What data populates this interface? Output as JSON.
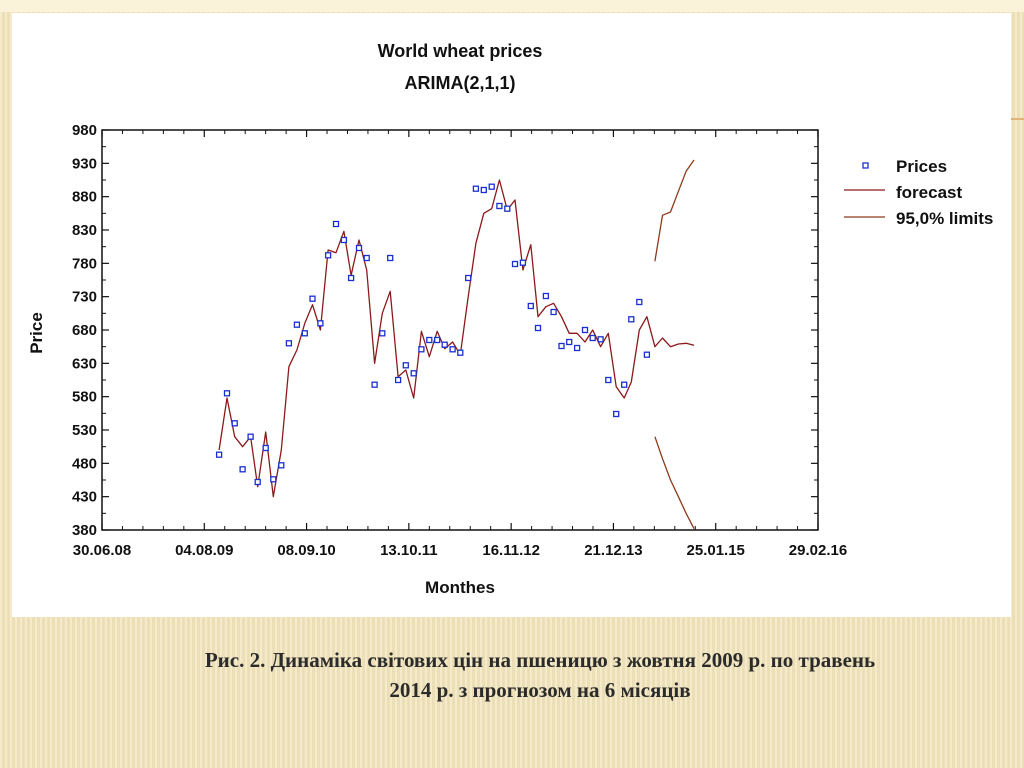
{
  "caption": {
    "line1": "Рис. 2. Динаміка світових цін на пшеницю з жовтня 2009 р. по травень",
    "line2": "2014 р.  з прогнозом на 6 місяців"
  },
  "colors": {
    "points": "#1a2fd0",
    "forecast": "#8b1a1a",
    "limits": "#8b3a1a",
    "background": "#f3e6bd"
  },
  "chart_data": {
    "type": "scatter",
    "title": "World wheat prices",
    "subtitle": "ARIMA(2,1,1)",
    "xlabel": "Monthes",
    "ylabel": "Price",
    "x_is_date": true,
    "xlim": [
      "2008-06-30",
      "2016-02-29"
    ],
    "ylim": [
      380,
      980
    ],
    "y_ticks": [
      380,
      430,
      480,
      530,
      580,
      630,
      680,
      730,
      780,
      830,
      880,
      930,
      980
    ],
    "x_ticks": [
      {
        "date": "2008-06-30",
        "label": "30.06.08"
      },
      {
        "date": "2009-08-04",
        "label": "04.08.09"
      },
      {
        "date": "2010-09-08",
        "label": "08.09.10"
      },
      {
        "date": "2011-10-13",
        "label": "13.10.11"
      },
      {
        "date": "2012-11-16",
        "label": "16.11.12"
      },
      {
        "date": "2013-12-21",
        "label": "21.12.13"
      },
      {
        "date": "2015-01-25",
        "label": "25.01.15"
      },
      {
        "date": "2016-02-29",
        "label": "29.02.16"
      }
    ],
    "legend_position": "right",
    "legend": [
      "Prices",
      "forecast",
      "95,0% limits"
    ],
    "series": [
      {
        "name": "Prices",
        "kind": "points",
        "x": [
          "2009-10-01",
          "2009-11-01",
          "2009-12-01",
          "2010-01-01",
          "2010-02-01",
          "2010-03-01",
          "2010-04-01",
          "2010-05-01",
          "2010-06-01",
          "2010-07-01",
          "2010-08-01",
          "2010-09-01",
          "2010-10-01",
          "2010-11-01",
          "2010-12-01",
          "2011-01-01",
          "2011-02-01",
          "2011-03-01",
          "2011-04-01",
          "2011-05-01",
          "2011-06-01",
          "2011-07-01",
          "2011-08-01",
          "2011-09-01",
          "2011-10-01",
          "2011-11-01",
          "2011-12-01",
          "2012-01-01",
          "2012-02-01",
          "2012-03-01",
          "2012-04-01",
          "2012-05-01",
          "2012-06-01",
          "2012-07-01",
          "2012-08-01",
          "2012-09-01",
          "2012-10-01",
          "2012-11-01",
          "2012-12-01",
          "2013-01-01",
          "2013-02-01",
          "2013-03-01",
          "2013-04-01",
          "2013-05-01",
          "2013-06-01",
          "2013-07-01",
          "2013-08-01",
          "2013-09-01",
          "2013-10-01",
          "2013-11-01",
          "2013-12-01",
          "2014-01-01",
          "2014-02-01",
          "2014-03-01",
          "2014-04-01",
          "2014-05-01"
        ],
        "y": [
          493,
          585,
          540,
          471,
          520,
          452,
          503,
          456,
          477,
          660,
          688,
          675,
          727,
          690,
          792,
          839,
          815,
          758,
          803,
          788,
          598,
          675,
          788,
          605,
          627,
          615,
          651,
          665,
          665,
          658,
          651,
          646,
          758,
          892,
          890,
          895,
          866,
          862,
          779,
          781,
          716,
          683,
          731,
          707,
          656,
          662,
          653,
          680,
          668,
          666,
          605,
          554,
          598,
          696,
          722,
          643
        ]
      },
      {
        "name": "forecast",
        "kind": "line",
        "x": [
          "2009-10-01",
          "2009-11-01",
          "2009-12-01",
          "2010-01-01",
          "2010-02-01",
          "2010-03-01",
          "2010-04-01",
          "2010-05-01",
          "2010-06-01",
          "2010-07-01",
          "2010-08-01",
          "2010-09-01",
          "2010-10-01",
          "2010-11-01",
          "2010-12-01",
          "2011-01-01",
          "2011-02-01",
          "2011-03-01",
          "2011-04-01",
          "2011-05-01",
          "2011-06-01",
          "2011-07-01",
          "2011-08-01",
          "2011-09-01",
          "2011-10-01",
          "2011-11-01",
          "2011-12-01",
          "2012-01-01",
          "2012-02-01",
          "2012-03-01",
          "2012-04-01",
          "2012-05-01",
          "2012-06-01",
          "2012-07-01",
          "2012-08-01",
          "2012-09-01",
          "2012-10-01",
          "2012-11-01",
          "2012-12-01",
          "2013-01-01",
          "2013-02-01",
          "2013-03-01",
          "2013-04-01",
          "2013-05-01",
          "2013-06-01",
          "2013-07-01",
          "2013-08-01",
          "2013-09-01",
          "2013-10-01",
          "2013-11-01",
          "2013-12-01",
          "2014-01-01",
          "2014-02-01",
          "2014-03-01",
          "2014-04-01",
          "2014-05-01",
          "2014-06-01",
          "2014-07-01",
          "2014-08-01",
          "2014-09-01",
          "2014-10-01",
          "2014-11-01"
        ],
        "y": [
          500,
          578,
          520,
          505,
          520,
          445,
          527,
          430,
          500,
          625,
          650,
          690,
          718,
          680,
          800,
          796,
          828,
          762,
          815,
          770,
          630,
          705,
          738,
          610,
          620,
          578,
          678,
          640,
          678,
          652,
          662,
          643,
          730,
          810,
          855,
          862,
          905,
          860,
          875,
          770,
          808,
          700,
          715,
          720,
          700,
          675,
          675,
          662,
          680,
          655,
          675,
          595,
          578,
          602,
          680,
          700,
          655,
          668,
          655,
          659,
          660,
          657
        ]
      },
      {
        "name": "95,0% limits",
        "kind": "line",
        "x": [
          "2014-06-01",
          "2014-07-01",
          "2014-08-01",
          "2014-09-01",
          "2014-10-01",
          "2014-11-01"
        ],
        "y": [
          783,
          852,
          857,
          888,
          918,
          935
        ]
      },
      {
        "name": "95,0% limits",
        "kind": "line",
        "x": [
          "2014-06-01",
          "2014-07-01",
          "2014-08-01",
          "2014-09-01",
          "2014-10-01",
          "2014-11-01"
        ],
        "y": [
          520,
          487,
          455,
          430,
          405,
          382
        ]
      }
    ]
  }
}
